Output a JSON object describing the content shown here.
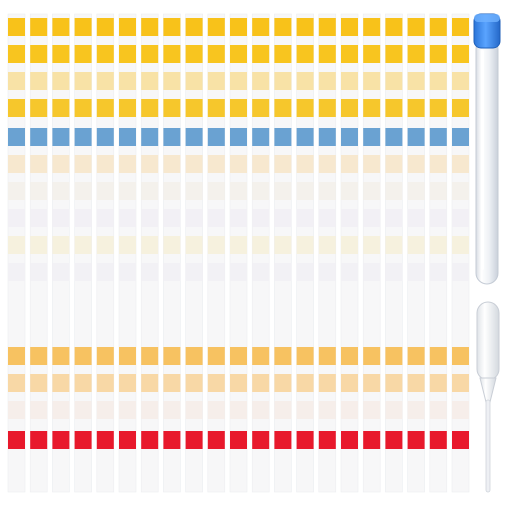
{
  "product": {
    "strip_count": 21,
    "pad_count": 14,
    "pad_colors": [
      "#f8c21a",
      "#f8c51f",
      "#f8e2a6",
      "#f6c72c",
      "#6aa2d2",
      "#f7e8cf",
      "#f4f1ec",
      "#f2f0f5",
      "#f6f1de",
      "#f2f1f5",
      "#f7c261",
      "#f8d8a6",
      "#f6eeea",
      "#e8192c"
    ],
    "strip_color": "#f7f7f8",
    "tube_cap_color": "#3d8ef0",
    "tube_color": "#f1f3f6",
    "pipette_color": "#f4f5f7",
    "icons": [
      "test-strip",
      "test-tube",
      "dropper-pipette"
    ]
  }
}
